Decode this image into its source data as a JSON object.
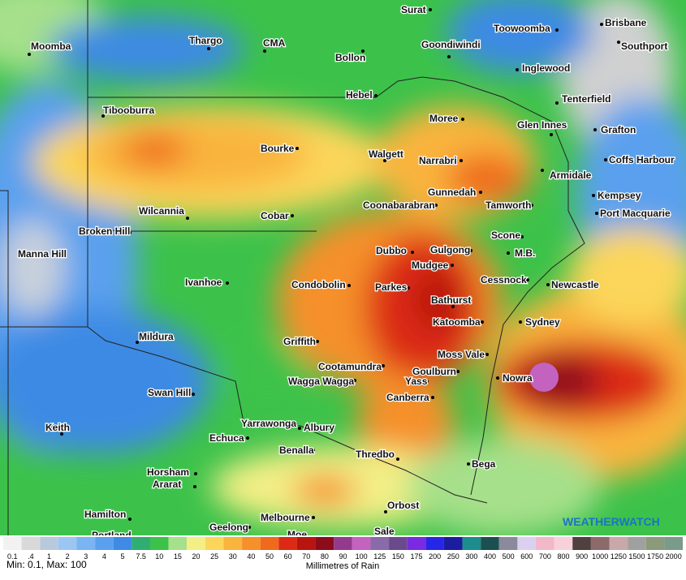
{
  "map": {
    "places": [
      "Surat",
      "Toowoomba",
      "Brisbane",
      "Moomba",
      "Thargo",
      "CMA",
      "Bollon",
      "Goondiwindi",
      "Southport",
      "Inglewood",
      "Hebel",
      "Tenterfield",
      "Tibooburra",
      "Moree",
      "Glen Innes",
      "Grafton",
      "Bourke",
      "Walgett",
      "Narrabri",
      "Coffs Harbour",
      "Armidale",
      "Gunnedah",
      "Kempsey",
      "Coonabarabran",
      "Tamworth",
      "Wilcannia",
      "Cobar",
      "Port Macquarie",
      "Broken Hill",
      "Scone",
      "Manna Hill",
      "Dubbo",
      "Gulgong",
      "M.B.",
      "Mudgee",
      "Ivanhoe",
      "Condobolin",
      "Cessnock",
      "Newcastle",
      "Parkes",
      "Bathurst",
      "Katoomba",
      "Sydney",
      "Mildura",
      "Griffith",
      "Moss Vale",
      "Cootamundra",
      "Goulburn",
      "Nowra",
      "Wagga Wagga",
      "Yass",
      "Swan Hill",
      "Canberra",
      "Keith",
      "Yarrawonga",
      "Albury",
      "Echuca",
      "Benalla",
      "Thredbo",
      "Bega",
      "Horsham",
      "Ararat",
      "Orbost",
      "Hamilton",
      "Melbourne",
      "Geelong",
      "Portland",
      "Moe",
      "Sale"
    ]
  },
  "legend": {
    "title": "Millimetres of Rain",
    "stats": "Min: 0.1, Max: 100",
    "items": [
      {
        "label": "0.1",
        "color": "#f2f2f2"
      },
      {
        "label": ".4",
        "color": "#d9d9d9"
      },
      {
        "label": "1",
        "color": "#b9c9dd"
      },
      {
        "label": "2",
        "color": "#9cc6f2"
      },
      {
        "label": "3",
        "color": "#7ab4f2"
      },
      {
        "label": "4",
        "color": "#5aa0ee"
      },
      {
        "label": "5",
        "color": "#3e8ae4"
      },
      {
        "label": "7.5",
        "color": "#2fae72"
      },
      {
        "label": "10",
        "color": "#3cc24a"
      },
      {
        "label": "15",
        "color": "#a6e08a"
      },
      {
        "label": "20",
        "color": "#f3ef86"
      },
      {
        "label": "25",
        "color": "#fbd65a"
      },
      {
        "label": "30",
        "color": "#f9b43c"
      },
      {
        "label": "40",
        "color": "#f5902a"
      },
      {
        "label": "50",
        "color": "#ef6a1c"
      },
      {
        "label": "60",
        "color": "#dc2a14"
      },
      {
        "label": "70",
        "color": "#b81410"
      },
      {
        "label": "80",
        "color": "#8c0c1c"
      },
      {
        "label": "90",
        "color": "#943a8c"
      },
      {
        "label": "100",
        "color": "#c462c0"
      },
      {
        "label": "125",
        "color": "#8a6aa8"
      },
      {
        "label": "150",
        "color": "#6a4a8c"
      },
      {
        "label": "175",
        "color": "#7a2ae0"
      },
      {
        "label": "200",
        "color": "#2626e8"
      },
      {
        "label": "250",
        "color": "#1c1ca0"
      },
      {
        "label": "300",
        "color": "#1c8c8c"
      },
      {
        "label": "400",
        "color": "#1c5050"
      },
      {
        "label": "500",
        "color": "#8a8a9a"
      },
      {
        "label": "600",
        "color": "#dcd0f0"
      },
      {
        "label": "700",
        "color": "#f0b8c8"
      },
      {
        "label": "800",
        "color": "#f8d0dc"
      },
      {
        "label": "900",
        "color": "#504040"
      },
      {
        "label": "1000",
        "color": "#8c6a6a"
      },
      {
        "label": "1250",
        "color": "#c8a8a8"
      },
      {
        "label": "1500",
        "color": "#a0a0a0"
      },
      {
        "label": "1750",
        "color": "#8a9a7a"
      },
      {
        "label": "2000",
        "color": "#7a9a8a"
      }
    ]
  },
  "logo": {
    "text": "WEATHERWATCH"
  }
}
